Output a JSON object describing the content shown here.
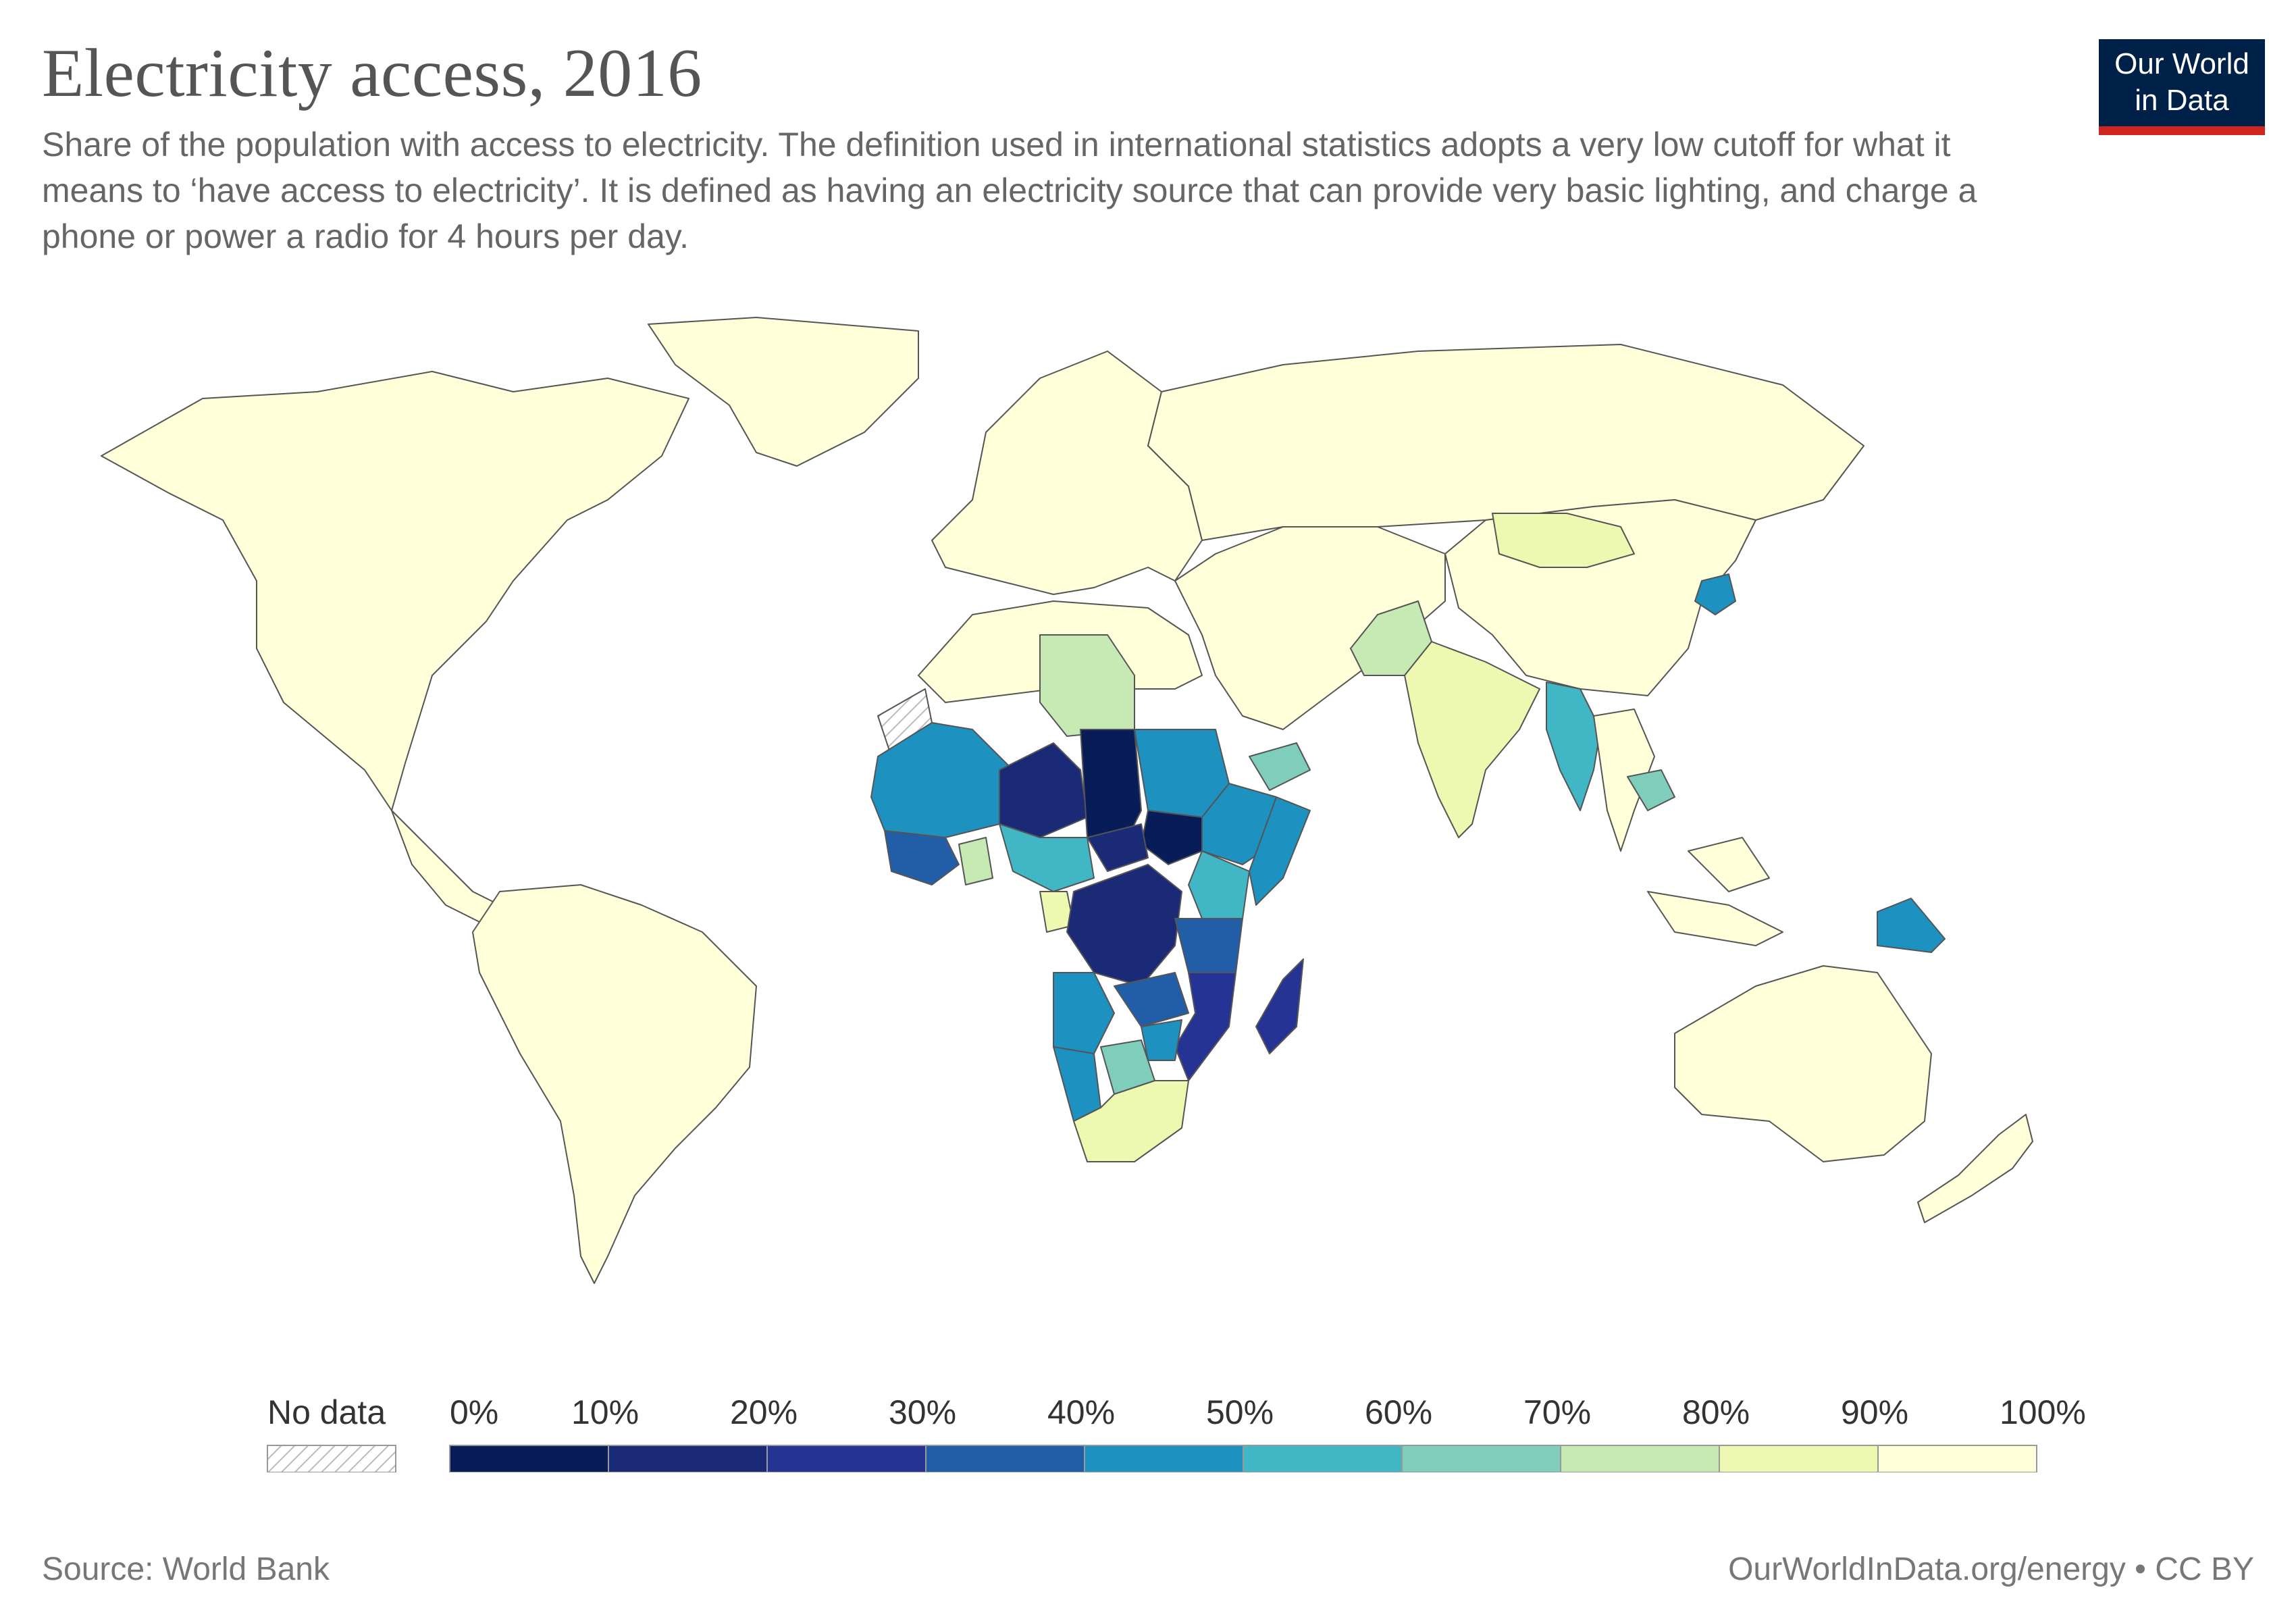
{
  "header": {
    "title": "Electricity access, 2016",
    "subtitle": "Share of the population with access to electricity. The definition used in international statistics adopts a very low cutoff for what it means to ‘have access to electricity’. It is defined as having an electricity source that can provide very basic lighting, and charge a phone or power a radio for 4 hours per day."
  },
  "logo": {
    "line1": "Our World",
    "line2": "in Data",
    "background": "#002147",
    "accent": "#ce261e"
  },
  "map": {
    "ocean_color": "#ffffff",
    "border_color": "#555555",
    "regions": [
      {
        "key": "north-america",
        "bin": 9
      },
      {
        "key": "greenland",
        "bin": 9
      },
      {
        "key": "south-america",
        "bin": 9
      },
      {
        "key": "europe",
        "bin": 9
      },
      {
        "key": "russia",
        "bin": 9
      },
      {
        "key": "china",
        "bin": 9
      },
      {
        "key": "mongolia",
        "bin": 8
      },
      {
        "key": "india",
        "bin": 8
      },
      {
        "key": "pakistan",
        "bin": 7
      },
      {
        "key": "myanmar",
        "bin": 5
      },
      {
        "key": "north-korea",
        "bin": 4
      },
      {
        "key": "southeast-asia",
        "bin": 9
      },
      {
        "key": "cambodia",
        "bin": 6
      },
      {
        "key": "australia",
        "bin": 9
      },
      {
        "key": "new-zealand",
        "bin": 9
      },
      {
        "key": "papua-new-guinea",
        "bin": 4
      },
      {
        "key": "north-africa",
        "bin": 9
      },
      {
        "key": "libya",
        "bin": 7
      },
      {
        "key": "middle-east",
        "bin": 9
      },
      {
        "key": "yemen",
        "bin": 6
      },
      {
        "key": "mauritania-mali",
        "bin": 4
      },
      {
        "key": "niger-region",
        "bin": 1
      },
      {
        "key": "chad",
        "bin": 0
      },
      {
        "key": "sudan",
        "bin": 4
      },
      {
        "key": "ethiopia",
        "bin": 4
      },
      {
        "key": "somalia",
        "bin": 4
      },
      {
        "key": "south-sudan",
        "bin": 0
      },
      {
        "key": "car",
        "bin": 1
      },
      {
        "key": "nigeria-cameroon",
        "bin": 5
      },
      {
        "key": "west-coast",
        "bin": 3
      },
      {
        "key": "ghana",
        "bin": 7
      },
      {
        "key": "gabon",
        "bin": 8
      },
      {
        "key": "dr-congo",
        "bin": 1
      },
      {
        "key": "kenya",
        "bin": 5
      },
      {
        "key": "tanzania",
        "bin": 3
      },
      {
        "key": "angola",
        "bin": 4
      },
      {
        "key": "zambia",
        "bin": 3
      },
      {
        "key": "mozambique",
        "bin": 2
      },
      {
        "key": "madagascar",
        "bin": 2
      },
      {
        "key": "namibia",
        "bin": 4
      },
      {
        "key": "botswana",
        "bin": 6
      },
      {
        "key": "zimbabwe",
        "bin": 4
      },
      {
        "key": "south-africa",
        "bin": 8
      },
      {
        "key": "western-sahara",
        "bin": -1
      }
    ]
  },
  "legend": {
    "no_data_label": "No data",
    "labels": [
      "0%",
      "10%",
      "20%",
      "30%",
      "40%",
      "50%",
      "60%",
      "70%",
      "80%",
      "90%",
      "100%"
    ],
    "colors": [
      "#081d58",
      "#1b2a77",
      "#253494",
      "#225ea8",
      "#1d91c0",
      "#41b6c4",
      "#7fcdbb",
      "#c7e9b4",
      "#edf8b1",
      "#ffffd9"
    ]
  },
  "footer": {
    "source": "Source: World Bank",
    "license": "OurWorldInData.org/energy • CC BY"
  }
}
